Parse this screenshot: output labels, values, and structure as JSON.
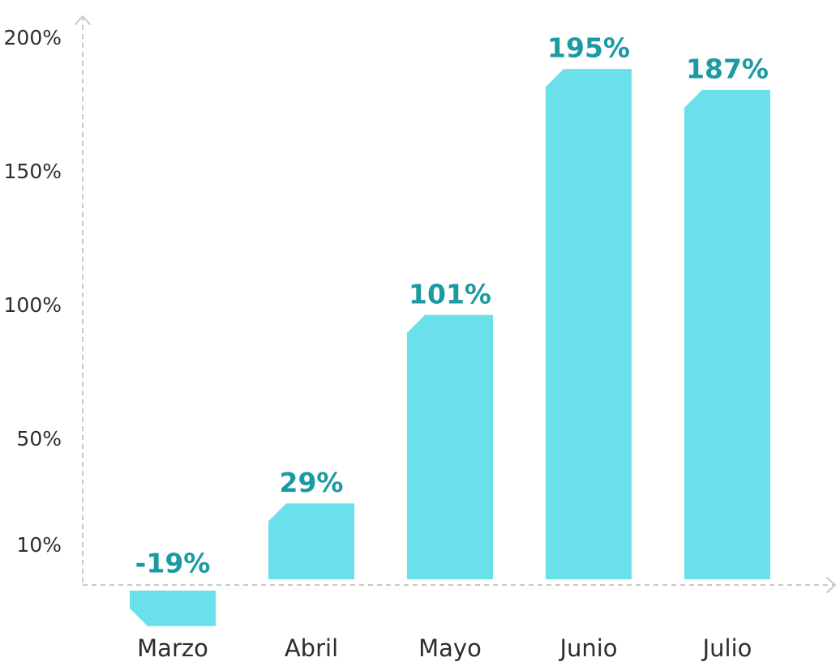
{
  "chart_data": {
    "type": "bar",
    "title": "",
    "xlabel": "",
    "ylabel": "",
    "categories": [
      "Marzo",
      "Abril",
      "Mayo",
      "Junio",
      "Julio"
    ],
    "values": [
      -19,
      29,
      101,
      195,
      187
    ],
    "data_labels": [
      "-19%",
      "29%",
      "101%",
      "195%",
      "187%"
    ],
    "y_ticks": [
      {
        "value": 10,
        "label": "10%"
      },
      {
        "value": 50,
        "label": "50%"
      },
      {
        "value": 100,
        "label": "100%"
      },
      {
        "value": 150,
        "label": "150%"
      },
      {
        "value": 200,
        "label": "200%"
      }
    ],
    "ylim": [
      -19,
      200
    ],
    "grid": false,
    "legend": "none",
    "colors": {
      "bar": "#6ae0ea",
      "data_label": "#1b9aa2",
      "axis": "#c8c8c8",
      "text": "#2d2d2d"
    }
  }
}
